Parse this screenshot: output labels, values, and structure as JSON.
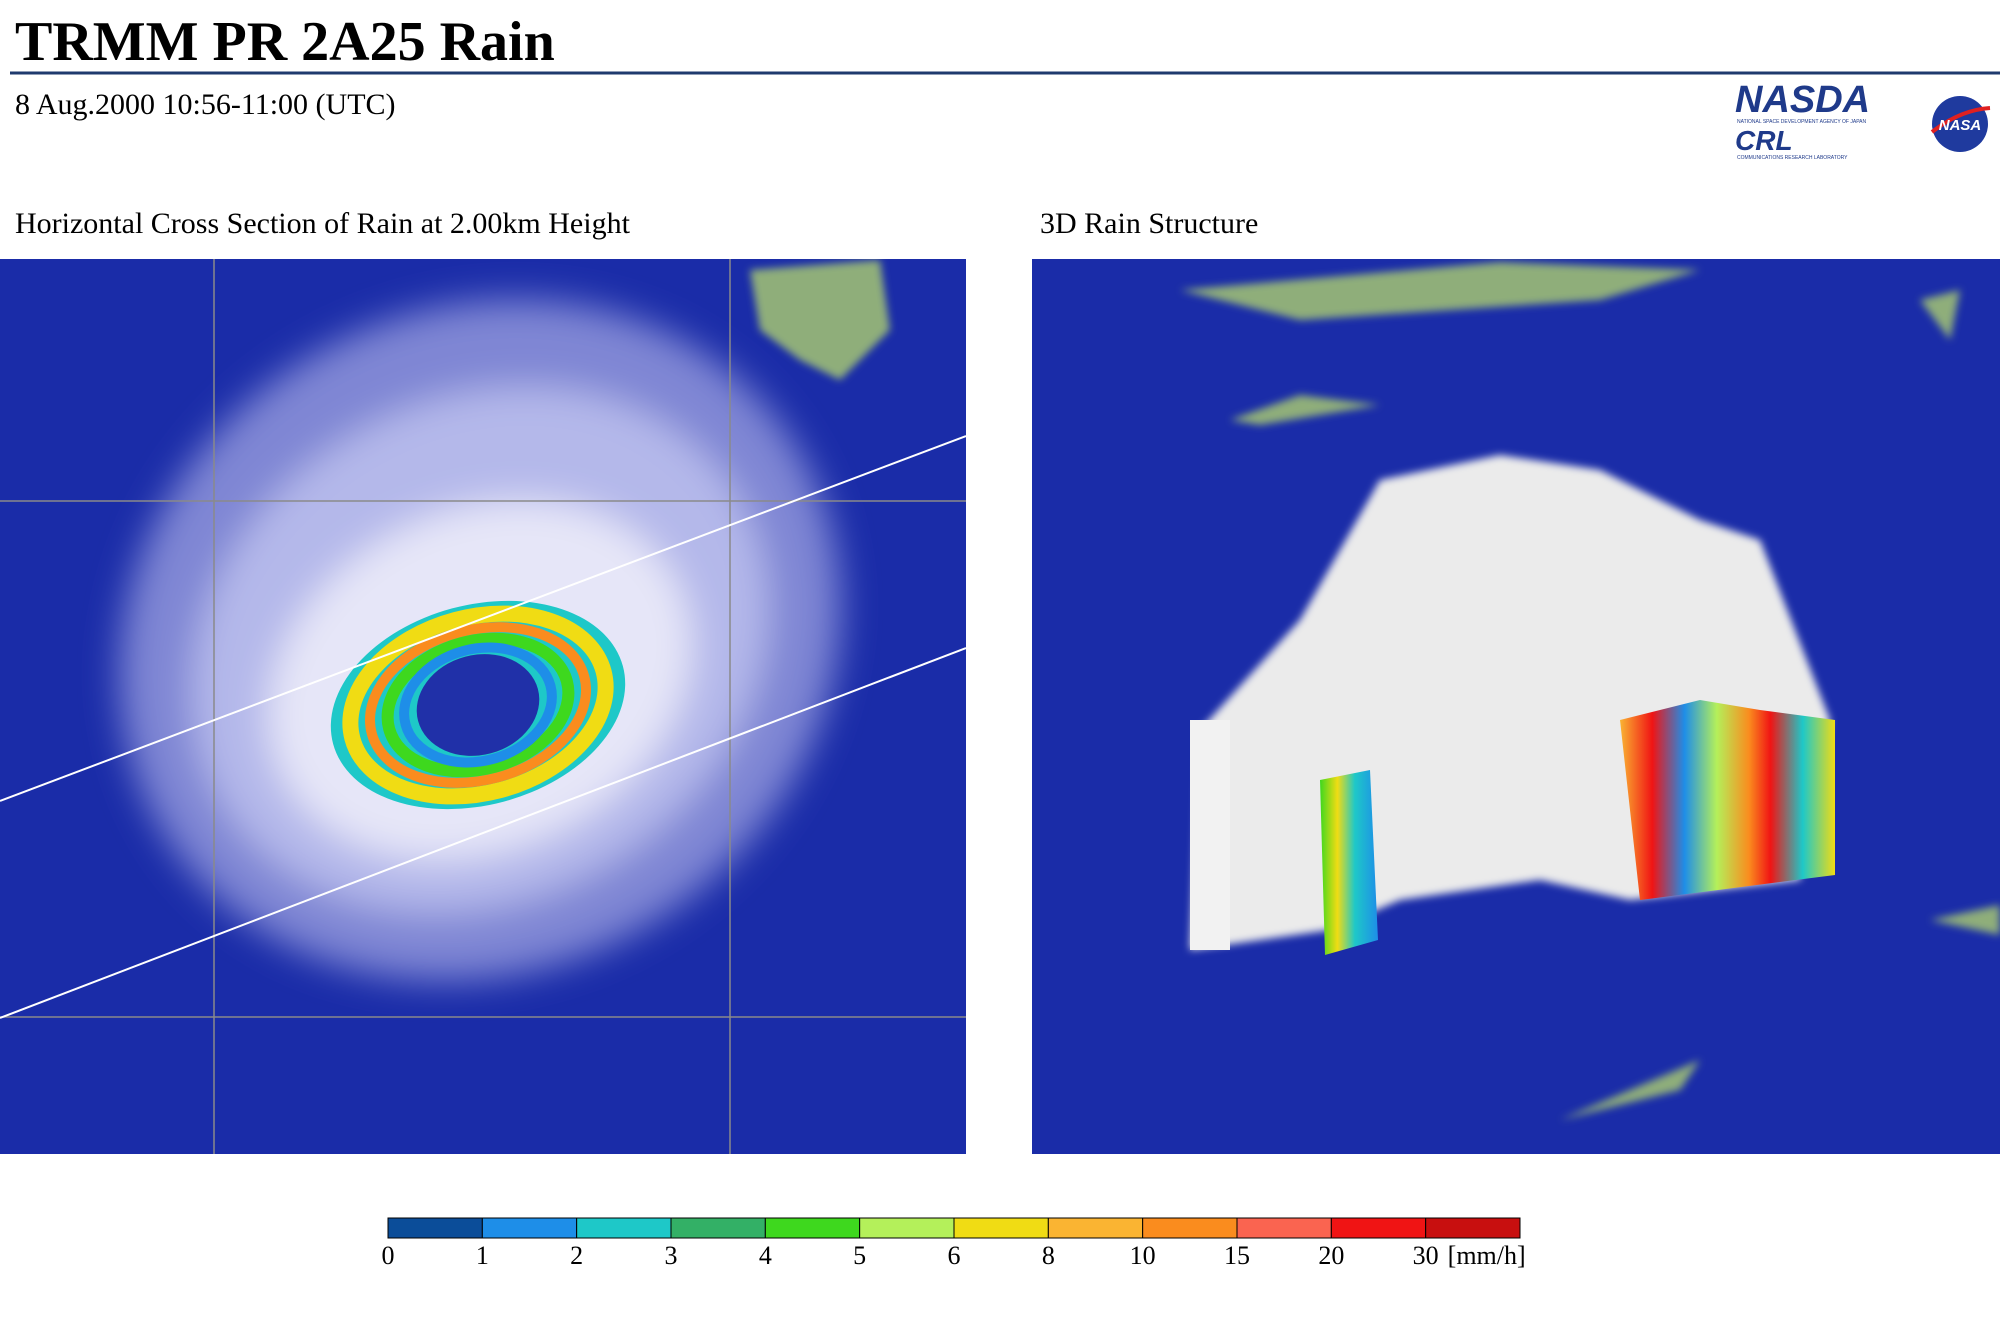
{
  "header": {
    "title": "TRMM PR 2A25 Rain",
    "subtitle": "8 Aug.2000 10:56-11:00 (UTC)",
    "logos": {
      "nasda": "NASDA",
      "nasda_caption": "NATIONAL SPACE DEVELOPMENT AGENCY OF JAPAN",
      "crl": "CRL",
      "crl_caption": "COMMUNICATIONS RESEARCH LABORATORY",
      "nasa": "NASA"
    }
  },
  "panels": [
    {
      "title": "Horizontal Cross Section of Rain at 2.00km Height"
    },
    {
      "title": "3D Rain Structure"
    }
  ],
  "colorbar": {
    "labels": [
      0,
      1,
      2,
      3,
      4,
      5,
      6,
      8,
      10,
      15,
      20,
      30
    ],
    "unit": "[mm/h]",
    "colors": [
      "#0b4d99",
      "#1e8ee8",
      "#1ec8c8",
      "#33b066",
      "#3ed81e",
      "#b4f05a",
      "#f0dc14",
      "#fab432",
      "#fa8c1e",
      "#fa6450",
      "#f01414",
      "#c80f0f"
    ]
  }
}
